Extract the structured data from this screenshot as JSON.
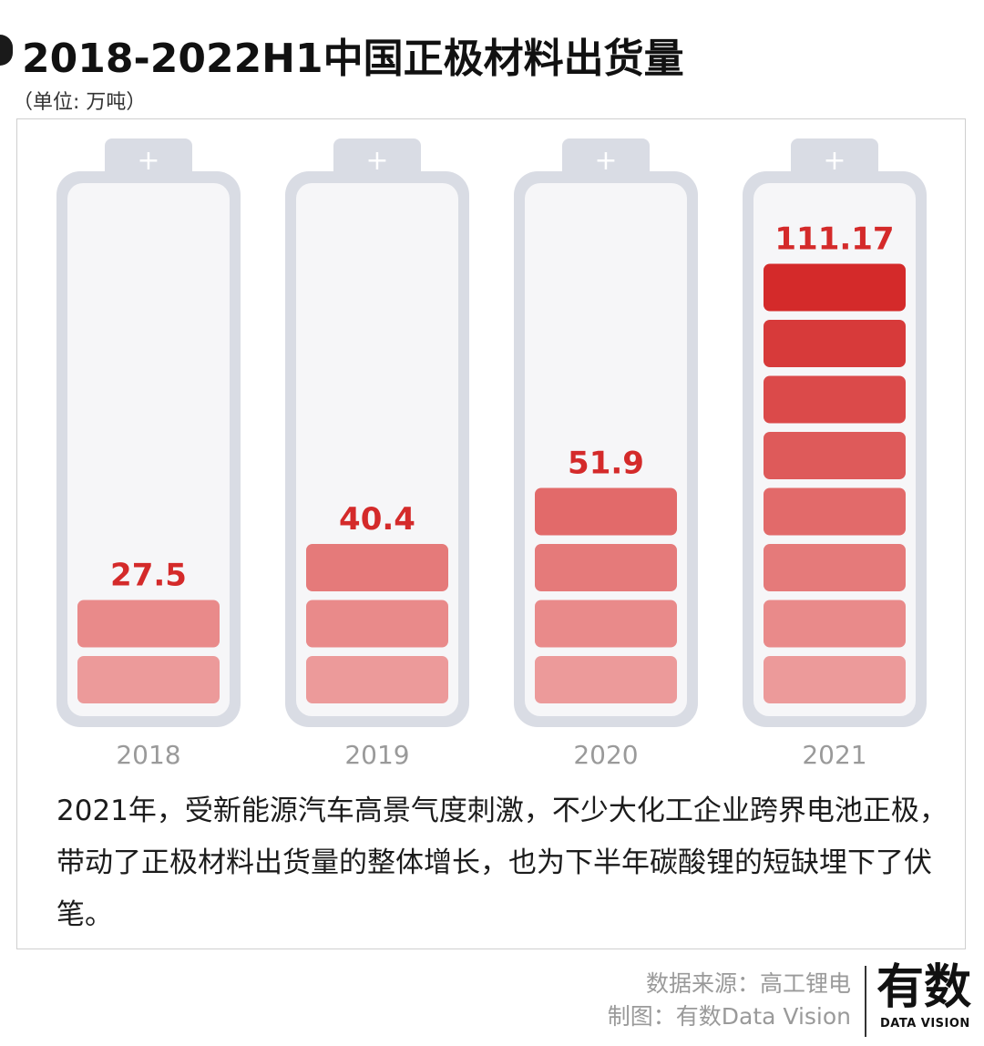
{
  "title": "2018-2022H1中国正极材料出货量",
  "unit": "（单位: 万吨）",
  "chart_data": {
    "type": "bar",
    "categories": [
      "2018",
      "2019",
      "2020",
      "2021"
    ],
    "values": [
      27.5,
      40.4,
      51.9,
      111.17
    ],
    "value_labels": [
      "27.5",
      "40.4",
      "51.9",
      "111.17"
    ],
    "segment_counts": [
      2,
      3,
      4,
      8
    ],
    "battery_plus": "+",
    "colors": {
      "segment_light": "#ec9a9a",
      "segment_dark": "#d42a2a",
      "value_text": "#d42a2a",
      "battery_outline": "#d9dce4",
      "battery_fill": "#f6f6f8",
      "year_text": "#9a9a9a"
    }
  },
  "caption": "2021年，受新能源汽车高景气度刺激，不少大化工企业跨界电池正极，带动了正极材料出货量的整体增长，也为下半年碳酸锂的短缺埋下了伏笔。",
  "footer": {
    "source": "数据来源：高工锂电",
    "maker": "制图：有数Data Vision"
  },
  "logo": {
    "main": "有数",
    "sub": "DATA VISION"
  }
}
